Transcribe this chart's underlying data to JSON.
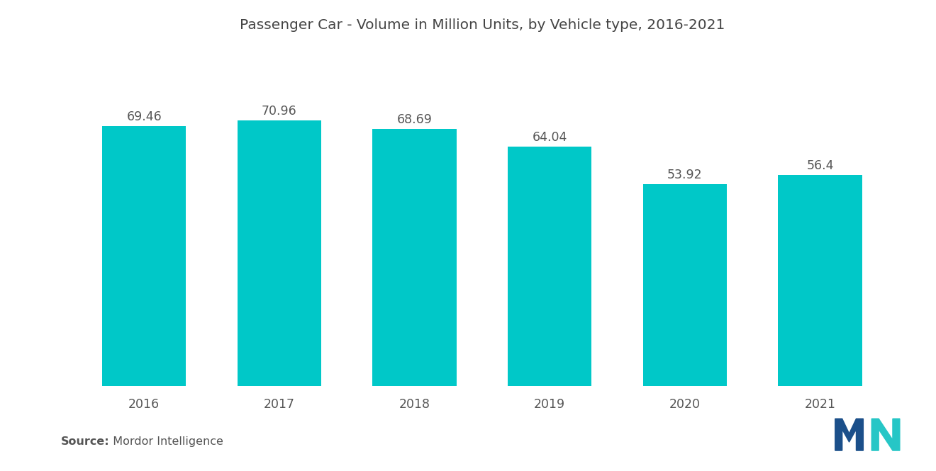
{
  "title": "Passenger Car - Volume in Million Units, by Vehicle type, 2016-2021",
  "years": [
    "2016",
    "2017",
    "2018",
    "2019",
    "2020",
    "2021"
  ],
  "values": [
    69.46,
    70.96,
    68.69,
    64.04,
    53.92,
    56.4
  ],
  "bar_color": "#00C8C8",
  "background_color": "#ffffff",
  "label_color": "#555555",
  "title_color": "#444444",
  "ylim": [
    0,
    88
  ],
  "bar_width": 0.62,
  "title_fontsize": 14.5,
  "label_fontsize": 12.5,
  "tick_fontsize": 12.5,
  "source_bold": "Source:",
  "source_normal": "  Mordor Intelligence",
  "source_fontsize": 11.5,
  "logo_colors": [
    "#1B4F8A",
    "#1B4F8A",
    "#26C6C6",
    "#26C6C6"
  ]
}
